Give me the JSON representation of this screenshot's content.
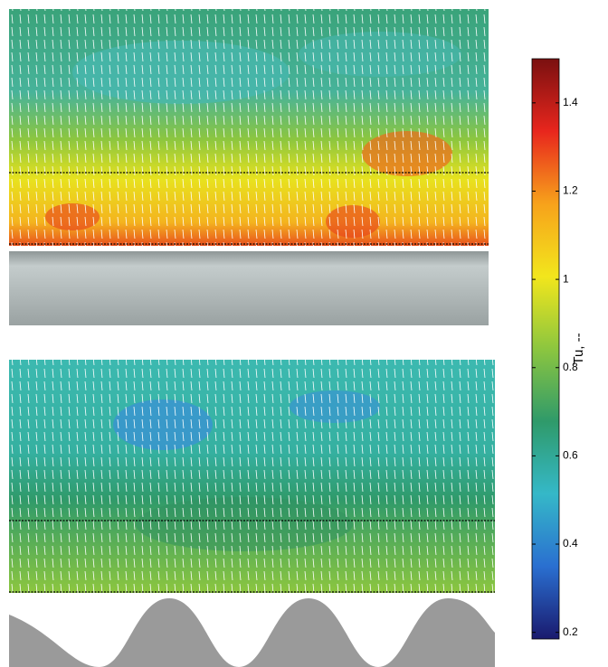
{
  "chart_data": {
    "type": "colorbar",
    "colorbar_label": "Tu, --",
    "clim": [
      0.185,
      1.5
    ],
    "cticks": [
      0.2,
      0.4,
      0.6,
      0.8,
      1,
      1.2,
      1.4
    ],
    "colormap": [
      "#1a1a6e",
      "#2a6fd0",
      "#35b8c8",
      "#2f9a6a",
      "#8cc63f",
      "#f2e61c",
      "#f7a21b",
      "#e8261d",
      "#7a1010"
    ]
  }
}
